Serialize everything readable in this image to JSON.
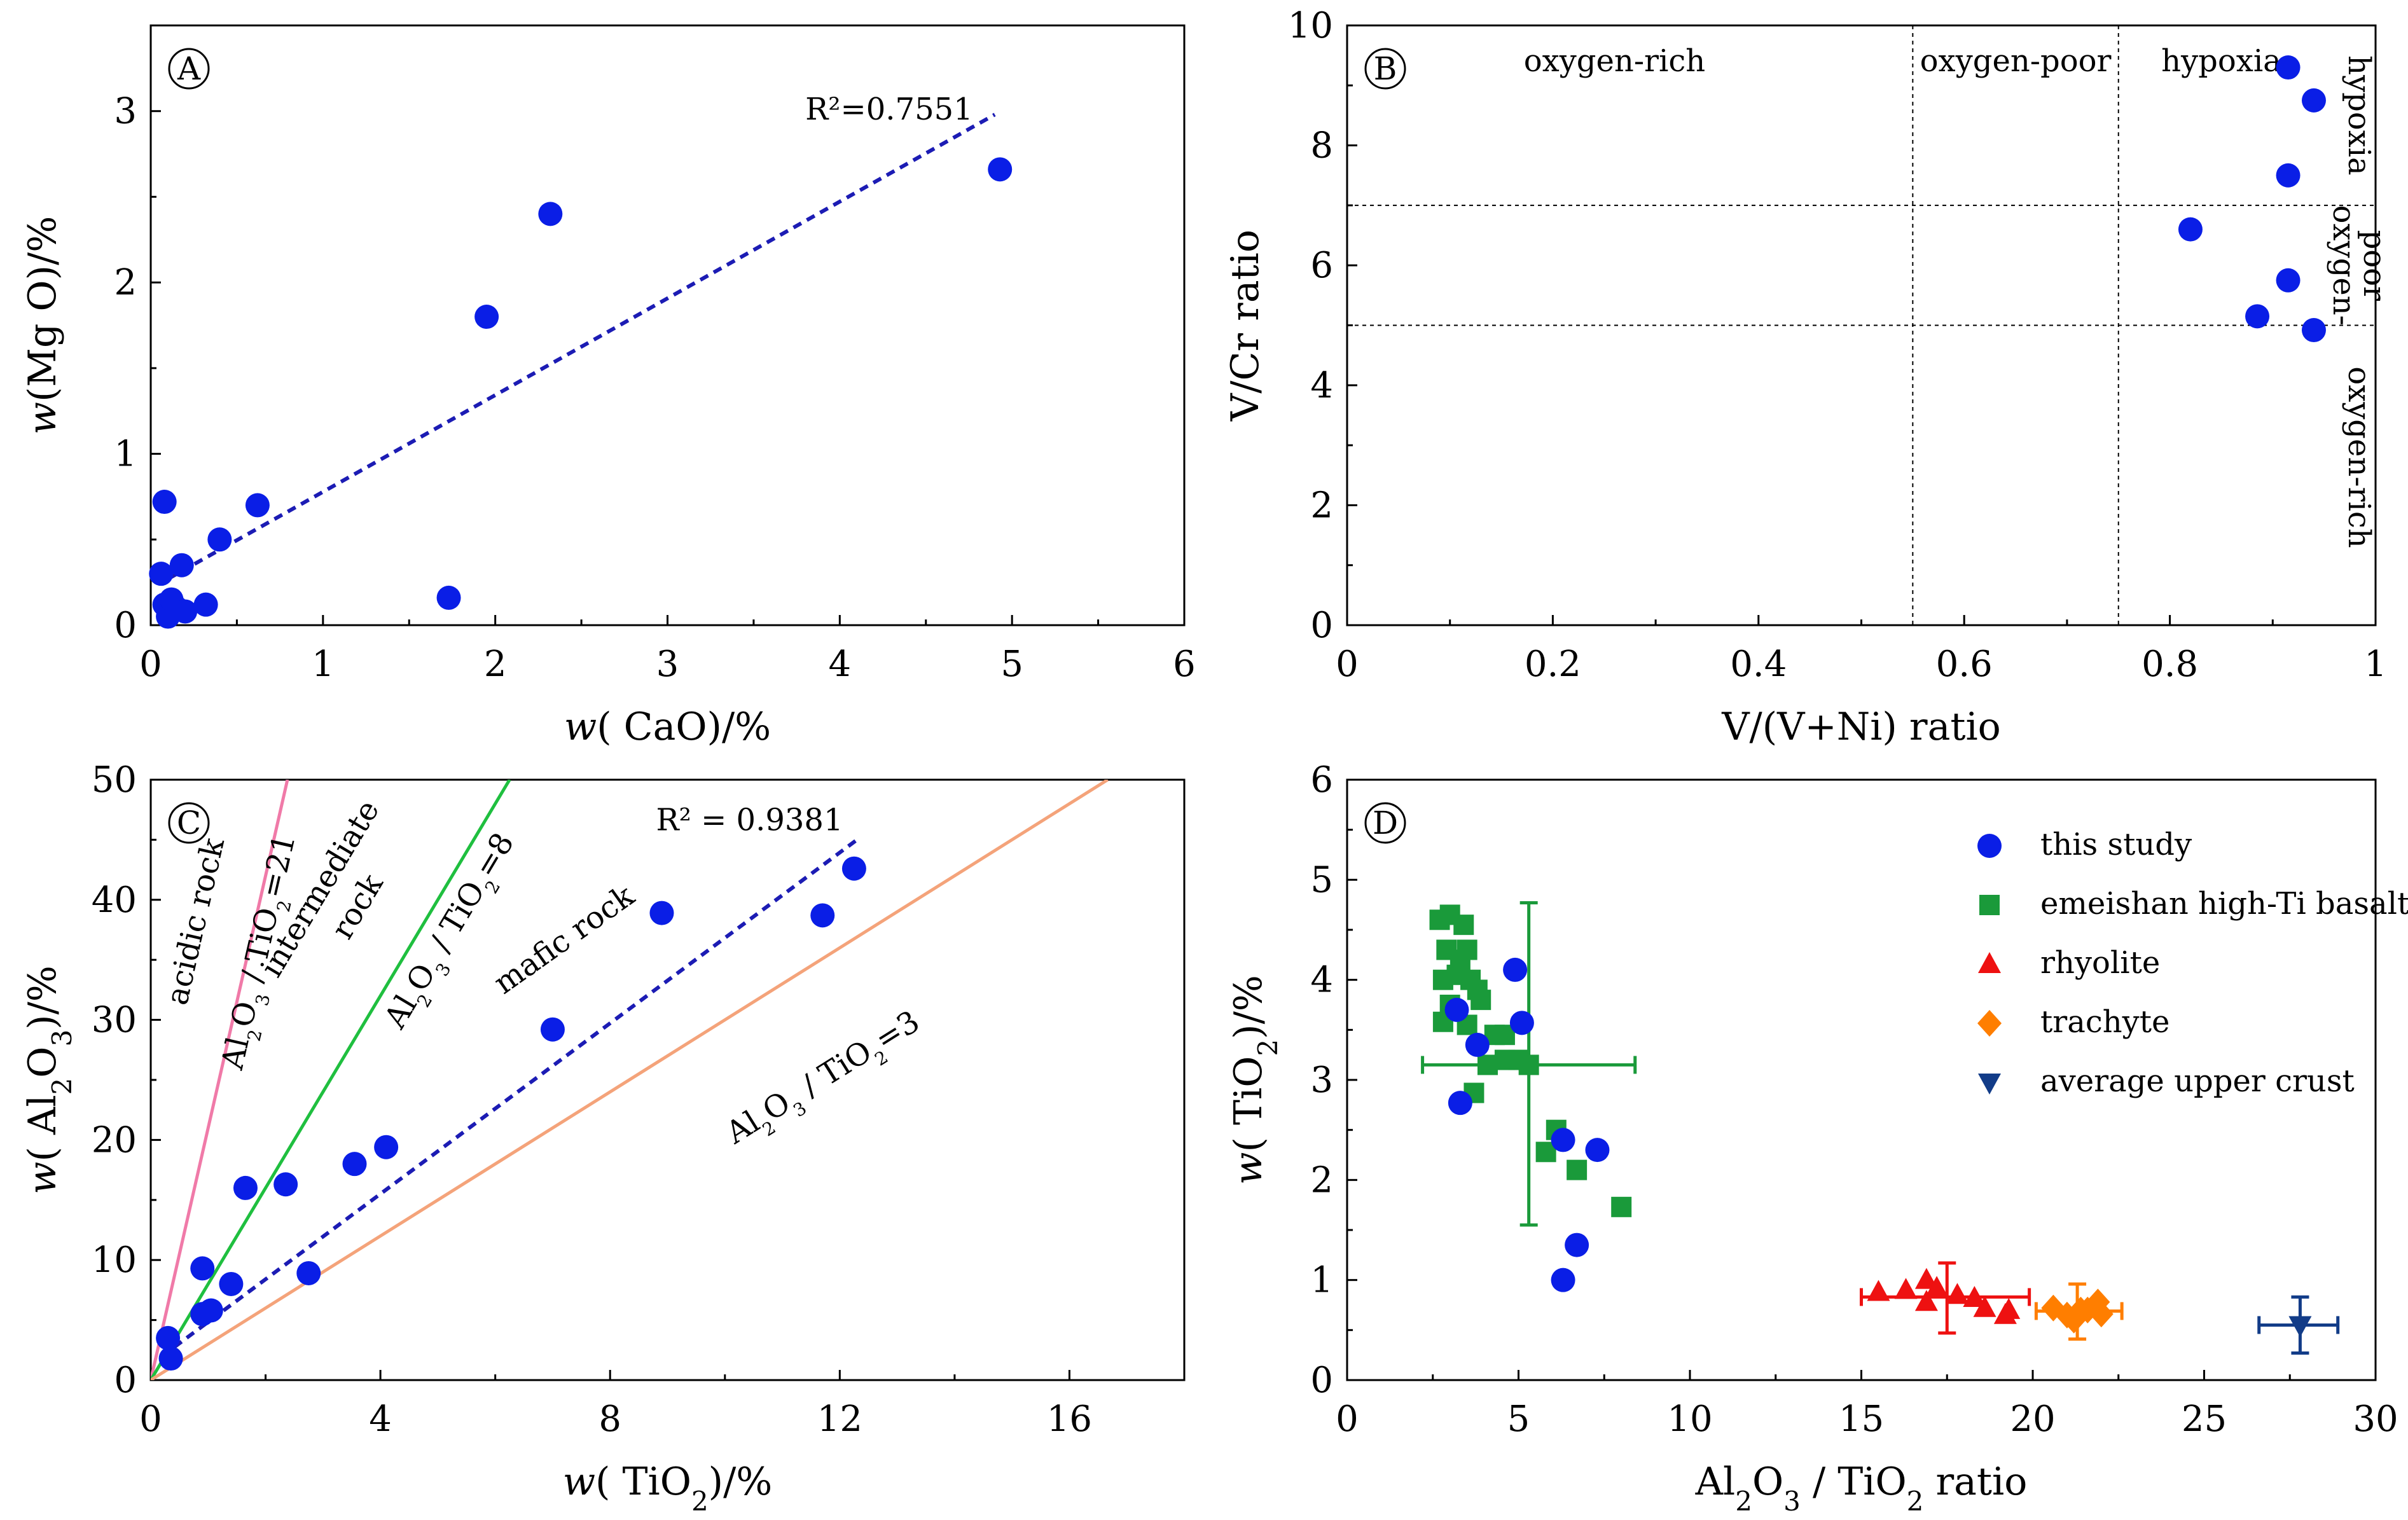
{
  "colors": {
    "blue_point": "#0a1ee6",
    "trend": "#1c1cb4",
    "green": "#1a9a3a",
    "green_line": "#1fbf3f",
    "pink": "#f07aa8",
    "orange_line": "#f4a37a",
    "red": "#ee1111",
    "orange": "#ff7e00",
    "navy": "#123c88"
  },
  "chart_data": [
    {
      "id": "A",
      "type": "scatter",
      "panel_label": "A",
      "xlabel_prefix": "w",
      "xlabel_rest": "( CaO)/%",
      "ylabel": "w(Mg O)/%",
      "xlim": [
        0,
        6
      ],
      "ylim": [
        0,
        3.5
      ],
      "xticks": [
        0,
        1,
        2,
        3,
        4,
        5,
        6
      ],
      "yticks": [
        0,
        1,
        2,
        3
      ],
      "points": [
        {
          "x": 0.08,
          "y": 0.72
        },
        {
          "x": 0.06,
          "y": 0.3
        },
        {
          "x": 0.08,
          "y": 0.12
        },
        {
          "x": 0.1,
          "y": 0.05
        },
        {
          "x": 0.12,
          "y": 0.15
        },
        {
          "x": 0.15,
          "y": 0.1
        },
        {
          "x": 0.18,
          "y": 0.35
        },
        {
          "x": 0.2,
          "y": 0.08
        },
        {
          "x": 0.32,
          "y": 0.12
        },
        {
          "x": 0.4,
          "y": 0.5
        },
        {
          "x": 0.62,
          "y": 0.7
        },
        {
          "x": 1.73,
          "y": 0.16
        },
        {
          "x": 1.95,
          "y": 1.8
        },
        {
          "x": 2.32,
          "y": 2.4
        },
        {
          "x": 4.93,
          "y": 2.66
        }
      ],
      "trendline": {
        "x": [
          0.1,
          4.9
        ],
        "y": [
          0.27,
          2.98
        ],
        "r2_label": "R²=0.7551"
      }
    },
    {
      "id": "B",
      "type": "scatter",
      "panel_label": "B",
      "xlabel": "V/(V+Ni)  ratio",
      "ylabel": "V/Cr  ratio",
      "xlim": [
        0,
        1
      ],
      "ylim": [
        0,
        10
      ],
      "xticks": [
        0,
        0.2,
        0.4,
        0.6,
        0.8,
        1
      ],
      "xtick_labels": [
        "0",
        "0.2",
        "0.4",
        "0.6",
        "0.8",
        "1"
      ],
      "yticks": [
        0,
        2,
        4,
        6,
        8,
        10
      ],
      "x_boundaries": [
        0.55,
        0.75
      ],
      "y_boundaries": [
        5,
        7
      ],
      "top_regions": [
        "oxygen-rich",
        "oxygen-poor",
        "hypoxia"
      ],
      "right_regions": [
        "hypoxia",
        "oxygen-poor",
        "oxygen-rich"
      ],
      "right_region_lines": [
        [
          "hypoxia"
        ],
        [
          "oxygen-",
          "poor"
        ],
        [
          "oxygen-rich"
        ]
      ],
      "points": [
        {
          "x": 0.915,
          "y": 9.3
        },
        {
          "x": 0.94,
          "y": 8.75
        },
        {
          "x": 0.915,
          "y": 7.5
        },
        {
          "x": 0.82,
          "y": 6.6
        },
        {
          "x": 0.915,
          "y": 5.75
        },
        {
          "x": 0.885,
          "y": 5.15
        },
        {
          "x": 0.94,
          "y": 4.92
        }
      ]
    },
    {
      "id": "C",
      "type": "scatter",
      "panel_label": "C",
      "xlabel_prefix": "w",
      "xlabel_rest": "( TiO2)/%",
      "ylabel": "w( Al2O3)/%",
      "xlim": [
        0,
        18
      ],
      "ylim": [
        0,
        50
      ],
      "xticks": [
        0,
        4,
        8,
        12,
        16
      ],
      "yticks": [
        0,
        10,
        20,
        30,
        40,
        50
      ],
      "points": [
        {
          "x": 0.3,
          "y": 3.5
        },
        {
          "x": 0.35,
          "y": 1.8
        },
        {
          "x": 0.9,
          "y": 9.3
        },
        {
          "x": 0.9,
          "y": 5.5
        },
        {
          "x": 1.05,
          "y": 5.8
        },
        {
          "x": 1.4,
          "y": 8.0
        },
        {
          "x": 1.65,
          "y": 16.0
        },
        {
          "x": 2.35,
          "y": 16.3
        },
        {
          "x": 2.75,
          "y": 8.9
        },
        {
          "x": 3.55,
          "y": 18.0
        },
        {
          "x": 4.1,
          "y": 19.4
        },
        {
          "x": 7.0,
          "y": 29.2
        },
        {
          "x": 8.9,
          "y": 38.9
        },
        {
          "x": 11.7,
          "y": 38.7
        },
        {
          "x": 12.25,
          "y": 42.6
        }
      ],
      "reference_lines": [
        {
          "name": "Al2O3/TiO2=21",
          "slope": 21,
          "color_key": "pink",
          "label": "Al2O3 / TiO2=21"
        },
        {
          "name": "Al2O3/TiO2=8",
          "slope": 8,
          "color_key": "green_line",
          "label": "Al2O3 / TiO2=8"
        },
        {
          "name": "Al2O3/TiO2=3",
          "slope": 3,
          "color_key": "orange_line",
          "label": "Al2O3 / TiO2=3"
        }
      ],
      "rock_labels": [
        "acidic rock",
        "intermediate",
        "rock",
        "mafic rock"
      ],
      "trendline": {
        "x": [
          0.2,
          12.3
        ],
        "y": [
          2.0,
          45.0
        ],
        "r2_label": "R² = 0.9381"
      }
    },
    {
      "id": "D",
      "type": "scatter",
      "panel_label": "D",
      "xlabel": "Al2O3 / TiO2  ratio",
      "ylabel": "w( TiO2)/%",
      "xlim": [
        0,
        30
      ],
      "ylim": [
        0,
        6
      ],
      "xticks": [
        0,
        5,
        10,
        15,
        20,
        25,
        30
      ],
      "yticks": [
        0,
        1,
        2,
        3,
        4,
        5,
        6
      ],
      "legend": [
        {
          "label": "this study",
          "marker": "circle",
          "color_key": "blue_point"
        },
        {
          "label": "emeishan high-Ti basalt",
          "marker": "square",
          "color_key": "green"
        },
        {
          "label": "rhyolite",
          "marker": "triangle",
          "color_key": "red"
        },
        {
          "label": "trachyte",
          "marker": "diamond",
          "color_key": "orange"
        },
        {
          "label": "average upper crust",
          "marker": "triangle-down",
          "color_key": "navy"
        }
      ],
      "series": [
        {
          "name": "this study",
          "marker": "circle",
          "color_key": "blue_point",
          "points": [
            [
              3.2,
              3.7
            ],
            [
              3.3,
              2.77
            ],
            [
              3.8,
              3.35
            ],
            [
              4.9,
              4.1
            ],
            [
              5.1,
              3.57
            ],
            [
              6.3,
              2.4
            ],
            [
              7.3,
              2.3
            ],
            [
              6.7,
              1.35
            ],
            [
              6.3,
              1.0
            ]
          ]
        },
        {
          "name": "emeishan high-Ti basalt",
          "marker": "square",
          "color_key": "green",
          "points": [
            [
              2.7,
              4.6
            ],
            [
              3.0,
              4.65
            ],
            [
              3.4,
              4.55
            ],
            [
              2.9,
              4.3
            ],
            [
              3.3,
              4.2
            ],
            [
              3.5,
              4.3
            ],
            [
              2.8,
              4.0
            ],
            [
              3.2,
              4.05
            ],
            [
              3.6,
              4.0
            ],
            [
              3.8,
              3.9
            ],
            [
              3.0,
              3.75
            ],
            [
              3.9,
              3.8
            ],
            [
              2.8,
              3.58
            ],
            [
              3.5,
              3.55
            ],
            [
              4.3,
              3.45
            ],
            [
              4.6,
              3.45
            ],
            [
              4.1,
              3.15
            ],
            [
              4.6,
              3.2
            ],
            [
              5.0,
              3.2
            ],
            [
              5.3,
              3.15
            ],
            [
              3.7,
              2.87
            ],
            [
              6.1,
              2.5
            ],
            [
              5.8,
              2.28
            ],
            [
              6.7,
              2.1
            ],
            [
              8.0,
              1.73
            ]
          ]
        },
        {
          "name": "rhyolite",
          "marker": "triangle",
          "color_key": "red",
          "points": [
            [
              15.5,
              0.88
            ],
            [
              16.3,
              0.9
            ],
            [
              16.9,
              1.0
            ],
            [
              17.2,
              0.92
            ],
            [
              16.9,
              0.78
            ],
            [
              17.8,
              0.85
            ],
            [
              18.3,
              0.82
            ],
            [
              18.6,
              0.72
            ],
            [
              19.3,
              0.7
            ],
            [
              19.2,
              0.65
            ]
          ]
        },
        {
          "name": "trachyte",
          "marker": "diamond",
          "color_key": "orange",
          "points": [
            [
              20.6,
              0.72
            ],
            [
              21.0,
              0.65
            ],
            [
              21.2,
              0.6
            ],
            [
              21.6,
              0.7
            ],
            [
              21.9,
              0.78
            ],
            [
              22.0,
              0.66
            ],
            [
              21.4,
              0.7
            ]
          ]
        },
        {
          "name": "average upper crust",
          "marker": "triangle-down",
          "color_key": "navy",
          "points": [
            [
              27.8,
              0.55
            ]
          ]
        }
      ],
      "error_bars": [
        {
          "name": "basalt",
          "color_key": "green",
          "cx": 5.3,
          "cy": 3.15,
          "x_range": [
            2.2,
            8.4
          ],
          "y_range": [
            1.55,
            4.77
          ]
        },
        {
          "name": "rhyolite",
          "color_key": "red",
          "cx": 17.5,
          "cy": 0.83,
          "x_range": [
            15.0,
            19.9
          ],
          "y_range": [
            0.47,
            1.17
          ]
        },
        {
          "name": "trachyte",
          "color_key": "orange",
          "cx": 21.3,
          "cy": 0.69,
          "x_range": [
            20.1,
            22.6
          ],
          "y_range": [
            0.41,
            0.96
          ]
        },
        {
          "name": "crust",
          "color_key": "navy",
          "cx": 27.8,
          "cy": 0.55,
          "x_range": [
            26.6,
            28.9
          ],
          "y_range": [
            0.27,
            0.83
          ]
        }
      ]
    }
  ]
}
